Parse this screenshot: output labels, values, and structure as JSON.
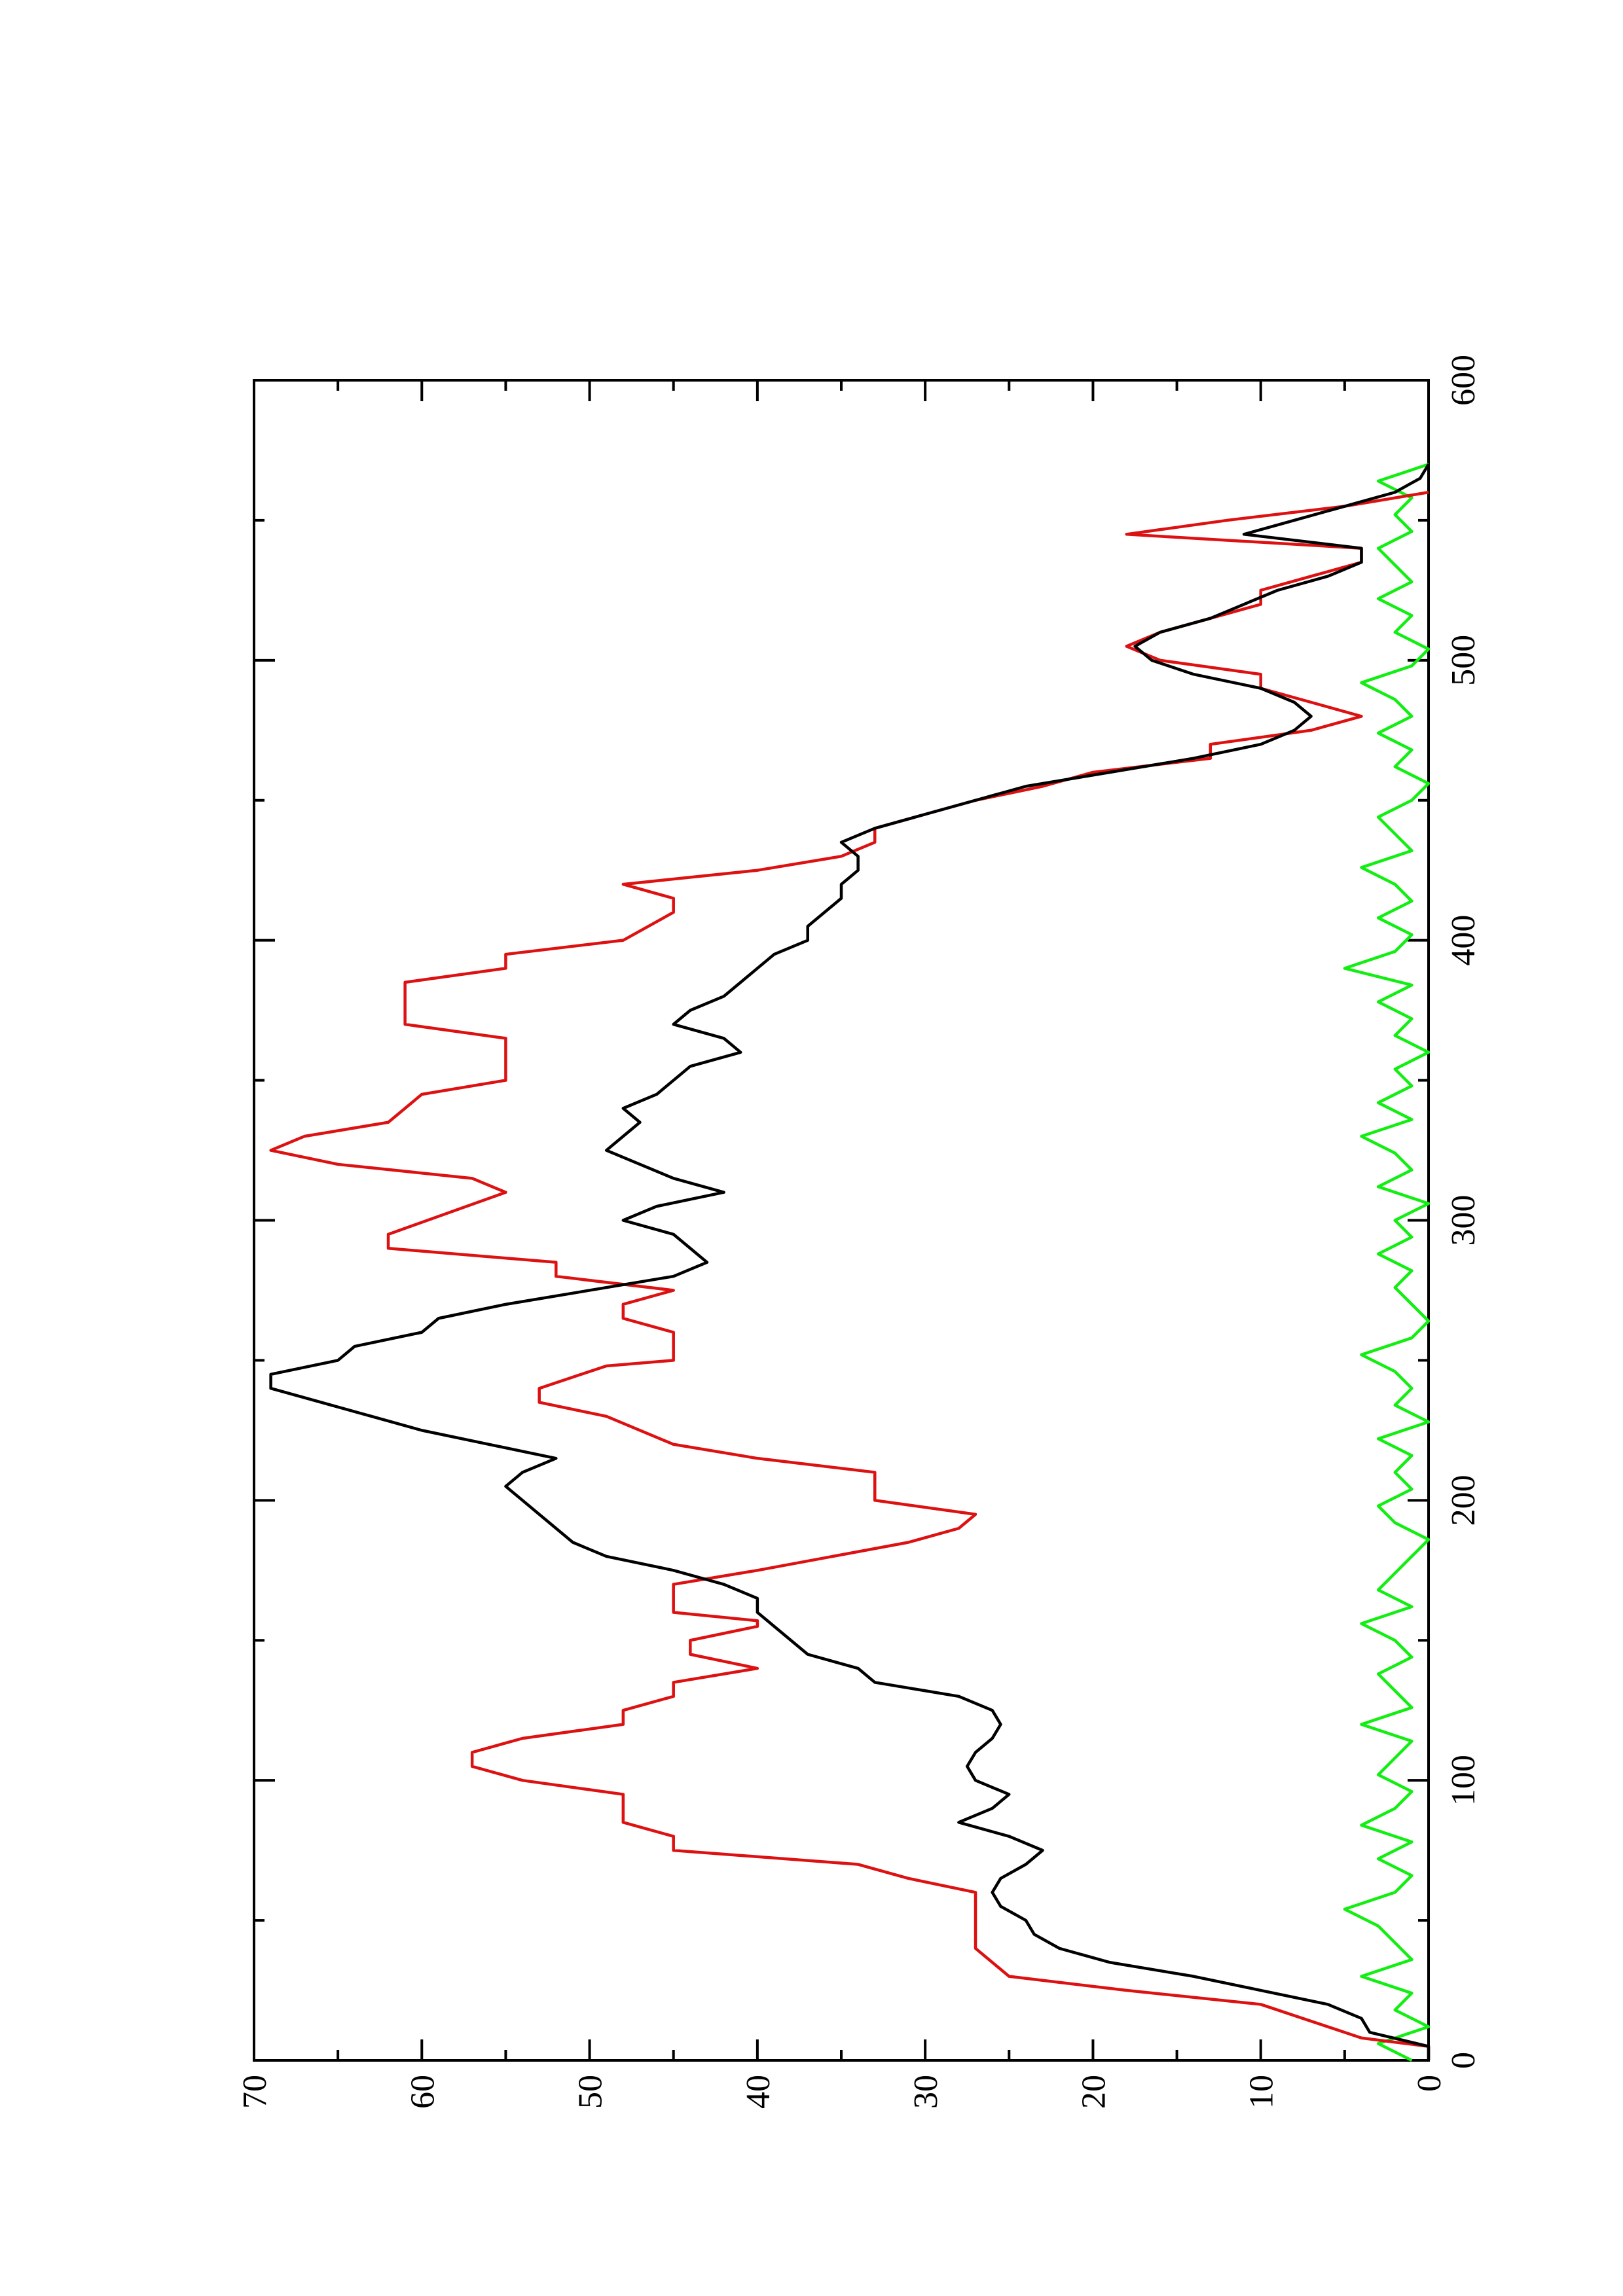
{
  "chart_data": {
    "type": "line",
    "xlim": [
      0,
      600
    ],
    "ylim": [
      0,
      70
    ],
    "xticks": [
      0,
      100,
      200,
      300,
      400,
      500,
      600
    ],
    "yticks": [
      0,
      10,
      20,
      30,
      40,
      50,
      60,
      70
    ],
    "x_minor_ticks": [
      50,
      150,
      250,
      350,
      450,
      550
    ],
    "y_minor_ticks": [
      5,
      15,
      25,
      35,
      45,
      55,
      65
    ],
    "series": [
      {
        "color": "#000000",
        "x": [
          0,
          5,
          10,
          15,
          20,
          25,
          30,
          35,
          40,
          45,
          50,
          55,
          60,
          65,
          70,
          75,
          80,
          85,
          90,
          95,
          100,
          105,
          110,
          115,
          120,
          125,
          130,
          135,
          140,
          145,
          150,
          155,
          160,
          165,
          170,
          175,
          180,
          185,
          190,
          195,
          200,
          205,
          210,
          215,
          220,
          225,
          230,
          235,
          240,
          245,
          250,
          255,
          260,
          265,
          270,
          275,
          280,
          285,
          290,
          295,
          300,
          305,
          310,
          315,
          320,
          325,
          330,
          335,
          340,
          345,
          350,
          355,
          360,
          365,
          370,
          375,
          380,
          385,
          390,
          395,
          400,
          405,
          410,
          415,
          420,
          425,
          430,
          435,
          440,
          445,
          450,
          455,
          460,
          465,
          470,
          475,
          480,
          485,
          490,
          495,
          500,
          505,
          510,
          515,
          520,
          525,
          530,
          535,
          540,
          545,
          550,
          555,
          560,
          565,
          570
        ],
        "values": [
          0,
          0,
          3.5,
          4,
          6,
          10,
          14,
          19,
          22,
          23.5,
          24,
          25.5,
          26,
          25.5,
          24,
          23,
          25,
          28,
          26,
          25,
          27,
          27.5,
          27,
          26,
          25.5,
          26,
          28,
          33,
          34,
          37,
          38,
          39,
          40,
          40,
          42,
          45,
          49,
          51,
          52,
          53,
          54,
          55,
          54,
          52,
          56,
          60,
          63,
          66,
          69,
          69,
          65,
          64,
          60,
          59,
          55,
          50,
          45,
          43,
          44,
          45,
          48,
          46,
          42,
          45,
          47,
          49,
          48,
          47,
          48,
          46,
          45,
          44,
          41,
          42,
          45,
          44,
          42,
          41,
          40,
          39,
          37,
          37,
          36,
          35,
          35,
          34,
          34,
          35,
          33,
          30,
          27,
          24,
          19,
          14,
          10,
          8,
          7,
          8,
          10,
          14,
          16.5,
          17.5,
          16,
          13,
          11,
          9,
          6,
          4,
          4,
          11,
          8,
          5,
          2,
          0.5,
          0
        ]
      },
      {
        "color": "#dd1111",
        "x": [
          0,
          5,
          8,
          20,
          25,
          30,
          40,
          60,
          65,
          70,
          75,
          80,
          85,
          95,
          100,
          105,
          110,
          115,
          120,
          125,
          130,
          135,
          140,
          145,
          150,
          155,
          157,
          160,
          170,
          175,
          185,
          190,
          195,
          200,
          210,
          215,
          220,
          230,
          235,
          240,
          248,
          250,
          260,
          265,
          270,
          275,
          280,
          285,
          290,
          295,
          310,
          315,
          320,
          325,
          330,
          335,
          345,
          350,
          365,
          370,
          385,
          390,
          395,
          400,
          410,
          415,
          420,
          425,
          430,
          435,
          440,
          445,
          450,
          455,
          460,
          465,
          470,
          475,
          480,
          485,
          490,
          495,
          500,
          505,
          510,
          515,
          520,
          525,
          530,
          535,
          540,
          545,
          550,
          555,
          560
        ],
        "values": [
          0,
          0,
          4,
          10,
          18,
          25,
          27,
          27,
          31,
          34,
          45,
          45,
          48,
          48,
          54,
          57,
          57,
          54,
          48,
          48,
          45,
          45,
          40,
          44,
          44,
          40,
          40,
          45,
          45,
          40,
          31,
          28,
          27,
          33,
          33,
          40,
          45,
          49,
          53,
          53,
          49,
          45,
          45,
          48,
          48,
          45,
          52,
          52,
          62,
          62,
          55,
          57,
          65,
          69,
          67,
          62,
          60,
          55,
          55,
          61,
          61,
          55,
          55,
          48,
          45,
          45,
          48,
          40,
          35,
          33,
          33,
          30,
          27,
          23,
          20,
          13,
          13,
          7,
          4,
          7,
          10,
          10,
          16,
          18,
          16,
          13,
          10,
          10,
          7,
          4,
          4,
          18,
          12,
          5,
          0
        ]
      },
      {
        "color": "#11ee11",
        "x": [
          0,
          6,
          12,
          18,
          24,
          30,
          36,
          42,
          48,
          54,
          60,
          66,
          72,
          78,
          84,
          90,
          96,
          102,
          108,
          114,
          120,
          126,
          132,
          138,
          144,
          150,
          156,
          162,
          168,
          174,
          180,
          186,
          192,
          198,
          204,
          210,
          216,
          222,
          228,
          234,
          240,
          246,
          252,
          258,
          264,
          270,
          276,
          282,
          288,
          294,
          300,
          306,
          312,
          318,
          324,
          330,
          336,
          342,
          348,
          354,
          360,
          366,
          372,
          378,
          384,
          390,
          396,
          402,
          408,
          414,
          420,
          426,
          432,
          438,
          444,
          450,
          456,
          462,
          468,
          474,
          480,
          486,
          492,
          498,
          504,
          510,
          516,
          522,
          528,
          534,
          540,
          546,
          552,
          558,
          564,
          570
        ],
        "values": [
          1,
          3,
          0,
          2,
          1,
          4,
          1,
          2,
          3,
          5,
          2,
          1,
          3,
          1,
          4,
          2,
          1,
          3,
          2,
          1,
          4,
          1,
          2,
          3,
          1,
          2,
          4,
          1,
          3,
          2,
          1,
          0,
          2,
          3,
          1,
          2,
          1,
          3,
          0,
          2,
          1,
          2,
          4,
          1,
          0,
          1,
          2,
          1,
          3,
          1,
          2,
          0,
          3,
          1,
          2,
          4,
          1,
          3,
          1,
          2,
          0,
          2,
          1,
          3,
          1,
          5,
          2,
          1,
          3,
          1,
          2,
          4,
          1,
          2,
          3,
          1,
          0,
          2,
          1,
          3,
          1,
          2,
          4,
          1,
          0,
          2,
          1,
          3,
          1,
          2,
          3,
          1,
          2,
          1,
          3,
          0
        ]
      }
    ]
  }
}
